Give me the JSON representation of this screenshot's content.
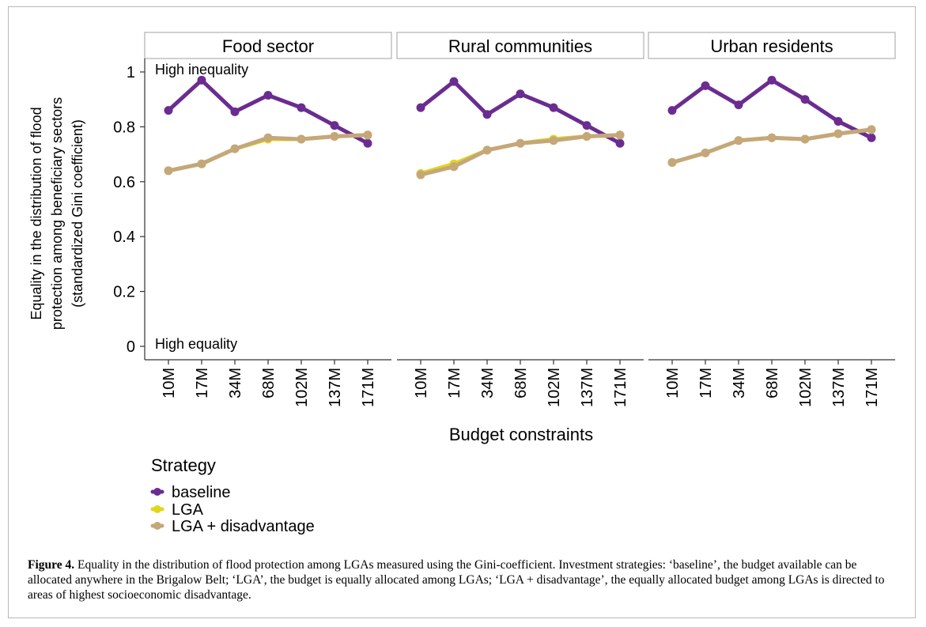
{
  "chart_data": {
    "type": "line",
    "panels": [
      "Food sector",
      "Rural communities",
      "Urban residents"
    ],
    "categories": [
      "10M",
      "17M",
      "34M",
      "68M",
      "102M",
      "137M",
      "171M"
    ],
    "ylim": [
      0,
      1
    ],
    "yticks": [
      "0",
      "0.2",
      "0.4",
      "0.6",
      "0.8",
      "1"
    ],
    "ylabel_lines": [
      "Equality in the distribution of flood",
      "protection among beneficiary sectors",
      "(standardized Gini coefficient)"
    ],
    "xlabel": "Budget constraints",
    "annotations": {
      "top": "High inequality",
      "bottom": "High equality"
    },
    "legend": {
      "title": "Strategy",
      "position": "bottom-left"
    },
    "series": [
      {
        "name": "baseline",
        "color": "#6a2c91",
        "values": [
          [
            0.86,
            0.97,
            0.855,
            0.915,
            0.87,
            0.805,
            0.74
          ],
          [
            0.87,
            0.965,
            0.845,
            0.92,
            0.87,
            0.805,
            0.74
          ],
          [
            0.86,
            0.95,
            0.88,
            0.97,
            0.9,
            0.82,
            0.76
          ]
        ]
      },
      {
        "name": "LGA",
        "color": "#e3d51c",
        "values": [
          [
            0.64,
            0.665,
            0.72,
            0.755,
            0.755,
            0.765,
            0.77
          ],
          [
            0.63,
            0.665,
            0.715,
            0.74,
            0.755,
            0.765,
            0.77
          ],
          [
            0.67,
            0.705,
            0.75,
            0.76,
            0.755,
            0.775,
            0.79
          ]
        ]
      },
      {
        "name": "LGA + disadvantage",
        "color": "#c4a77a",
        "values": [
          [
            0.64,
            0.665,
            0.72,
            0.76,
            0.755,
            0.765,
            0.77
          ],
          [
            0.625,
            0.655,
            0.715,
            0.74,
            0.75,
            0.765,
            0.77
          ],
          [
            0.67,
            0.705,
            0.75,
            0.76,
            0.755,
            0.775,
            0.79
          ]
        ]
      }
    ]
  },
  "caption": {
    "label": "Figure 4.",
    "text": "Equality in the distribution of flood protection among LGAs measured using the Gini-coefficient. Investment strategies: ‘baseline’, the budget available can be allocated anywhere in the Brigalow Belt; ‘LGA’, the budget is equally allocated among LGAs; ‘LGA + disadvantage’, the equally allocated budget among LGAs is directed to areas of highest socioeconomic disadvantage."
  }
}
